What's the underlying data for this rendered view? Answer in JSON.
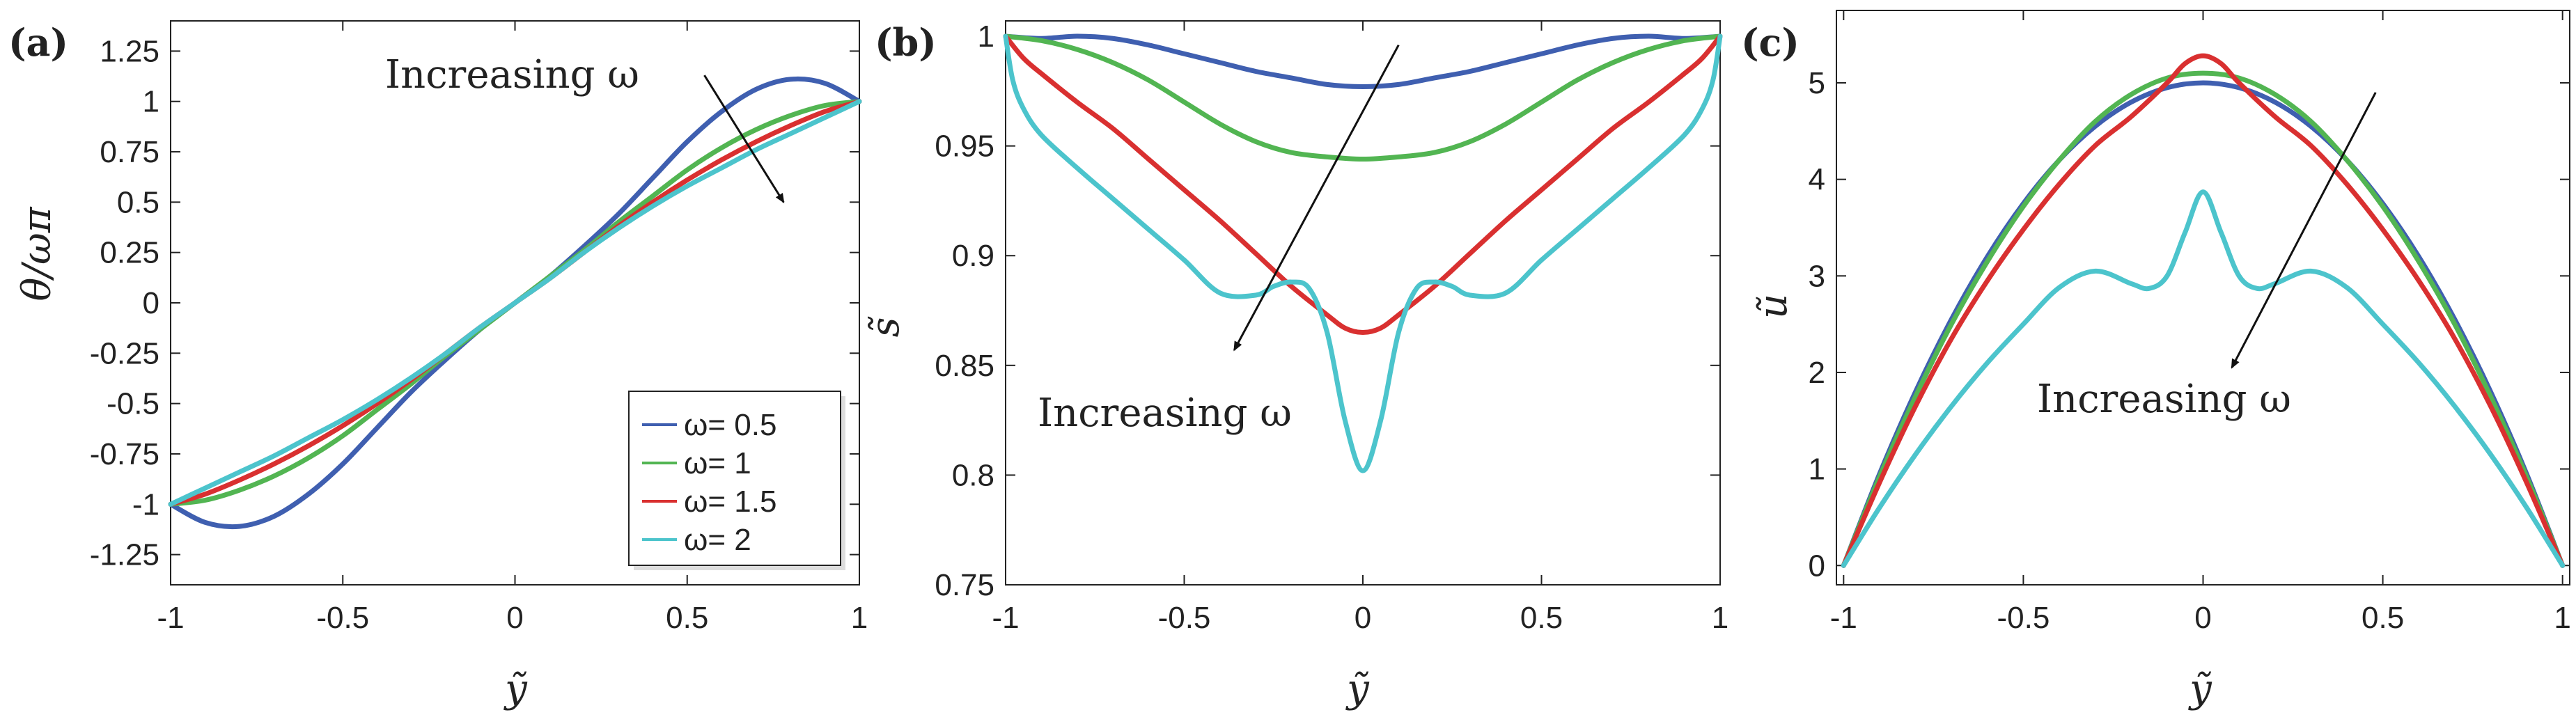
{
  "figure": {
    "panels": [
      "(a)",
      "(b)",
      "(c)"
    ]
  },
  "legend": {
    "entries": [
      "ω= 0.5",
      "ω= 1",
      "ω= 1.5",
      "ω= 2"
    ],
    "colors": [
      "#3f5fb0",
      "#52b552",
      "#d93030",
      "#4cc4cc"
    ]
  },
  "chart_data": [
    {
      "panel": "(a)",
      "type": "line",
      "xlabel": "ỹ",
      "ylabel": "θ/ωπ",
      "xlim": [
        -1,
        1
      ],
      "ylim": [
        -1.4,
        1.4
      ],
      "xticks": [
        -1,
        -0.5,
        0,
        0.5,
        1
      ],
      "xtick_labels": [
        "-1",
        "-0.5",
        "0",
        "0.5",
        "1"
      ],
      "yticks": [
        -1.25,
        -1,
        -0.75,
        -0.5,
        -0.25,
        0,
        0.25,
        0.5,
        0.75,
        1,
        1.25
      ],
      "ytick_labels": [
        "-1.25",
        "-1",
        "-0.75",
        "-0.5",
        "-0.25",
        "0",
        "0.25",
        "0.5",
        "0.75",
        "1",
        "1.25"
      ],
      "annotation": "Increasing ω",
      "arrow": {
        "from": [
          0.55,
          1.13
        ],
        "to": [
          0.78,
          0.5
        ]
      },
      "series": [
        {
          "name": "ω= 0.5",
          "color": "#3f5fb0",
          "x": [
            -1,
            -0.9,
            -0.8,
            -0.7,
            -0.6,
            -0.5,
            -0.4,
            -0.3,
            -0.2,
            -0.1,
            0,
            0.1,
            0.2,
            0.3,
            0.4,
            0.5,
            0.6,
            0.7,
            0.8,
            0.9,
            1
          ],
          "y": [
            -1,
            -1.09,
            -1.11,
            -1.06,
            -0.95,
            -0.8,
            -0.62,
            -0.44,
            -0.28,
            -0.13,
            0,
            0.13,
            0.28,
            0.44,
            0.62,
            0.8,
            0.95,
            1.06,
            1.11,
            1.09,
            1
          ]
        },
        {
          "name": "ω= 1",
          "color": "#52b552",
          "x": [
            -1,
            -0.9,
            -0.8,
            -0.7,
            -0.6,
            -0.5,
            -0.4,
            -0.3,
            -0.2,
            -0.1,
            0,
            0.1,
            0.2,
            0.3,
            0.4,
            0.5,
            0.6,
            0.7,
            0.8,
            0.9,
            1
          ],
          "y": [
            -1,
            -0.98,
            -0.93,
            -0.86,
            -0.77,
            -0.66,
            -0.53,
            -0.4,
            -0.26,
            -0.13,
            0,
            0.13,
            0.26,
            0.4,
            0.53,
            0.66,
            0.77,
            0.86,
            0.93,
            0.98,
            1
          ]
        },
        {
          "name": "ω= 1.5",
          "color": "#d93030",
          "x": [
            -1,
            -0.9,
            -0.8,
            -0.7,
            -0.6,
            -0.5,
            -0.4,
            -0.3,
            -0.2,
            -0.1,
            0,
            0.1,
            0.2,
            0.3,
            0.4,
            0.5,
            0.6,
            0.7,
            0.8,
            0.9,
            1
          ],
          "y": [
            -1,
            -0.95,
            -0.88,
            -0.8,
            -0.71,
            -0.61,
            -0.5,
            -0.38,
            -0.25,
            -0.12,
            0,
            0.12,
            0.25,
            0.38,
            0.5,
            0.61,
            0.71,
            0.8,
            0.88,
            0.95,
            1
          ]
        },
        {
          "name": "ω= 2",
          "color": "#4cc4cc",
          "x": [
            -1,
            -0.9,
            -0.8,
            -0.7,
            -0.6,
            -0.5,
            -0.4,
            -0.3,
            -0.2,
            -0.1,
            0,
            0.1,
            0.2,
            0.3,
            0.4,
            0.5,
            0.6,
            0.7,
            0.8,
            0.9,
            1
          ],
          "y": [
            -1,
            -0.92,
            -0.84,
            -0.76,
            -0.67,
            -0.58,
            -0.48,
            -0.37,
            -0.25,
            -0.12,
            0,
            0.12,
            0.25,
            0.37,
            0.48,
            0.58,
            0.67,
            0.76,
            0.84,
            0.92,
            1
          ]
        }
      ]
    },
    {
      "panel": "(b)",
      "type": "line",
      "xlabel": "ỹ",
      "ylabel": "s̃",
      "xlim": [
        -1,
        1
      ],
      "ylim": [
        0.75,
        1.007
      ],
      "xticks": [
        -1,
        -0.5,
        0,
        0.5,
        1
      ],
      "xtick_labels": [
        "-1",
        "-0.5",
        "0",
        "0.5",
        "1"
      ],
      "yticks": [
        0.75,
        0.8,
        0.85,
        0.9,
        0.95,
        1
      ],
      "ytick_labels": [
        "0.75",
        "0.8",
        "0.85",
        "0.9",
        "0.95",
        "1"
      ],
      "annotation": "Increasing ω",
      "arrow": {
        "from": [
          0.1,
          0.996
        ],
        "to": [
          -0.36,
          0.857
        ]
      },
      "series": [
        {
          "name": "ω= 0.5",
          "color": "#3f5fb0",
          "x": [
            -1,
            -0.9,
            -0.8,
            -0.7,
            -0.6,
            -0.5,
            -0.4,
            -0.3,
            -0.2,
            -0.1,
            0,
            0.1,
            0.2,
            0.3,
            0.4,
            0.5,
            0.6,
            0.7,
            0.8,
            0.9,
            1
          ],
          "y": [
            1,
            0.999,
            1.0,
            0.999,
            0.996,
            0.992,
            0.988,
            0.984,
            0.981,
            0.978,
            0.977,
            0.978,
            0.981,
            0.984,
            0.988,
            0.992,
            0.996,
            0.999,
            1.0,
            0.999,
            1
          ]
        },
        {
          "name": "ω= 1",
          "color": "#52b552",
          "x": [
            -1,
            -0.9,
            -0.8,
            -0.7,
            -0.6,
            -0.5,
            -0.4,
            -0.3,
            -0.2,
            -0.1,
            0,
            0.1,
            0.2,
            0.3,
            0.4,
            0.5,
            0.6,
            0.7,
            0.8,
            0.9,
            1
          ],
          "y": [
            1,
            0.998,
            0.994,
            0.988,
            0.98,
            0.97,
            0.96,
            0.952,
            0.947,
            0.945,
            0.944,
            0.945,
            0.947,
            0.952,
            0.96,
            0.97,
            0.98,
            0.988,
            0.994,
            0.998,
            1
          ]
        },
        {
          "name": "ω= 1.5",
          "color": "#d93030",
          "x": [
            -1,
            -0.95,
            -0.9,
            -0.8,
            -0.7,
            -0.6,
            -0.5,
            -0.4,
            -0.3,
            -0.2,
            -0.1,
            -0.05,
            0,
            0.05,
            0.1,
            0.2,
            0.3,
            0.4,
            0.5,
            0.6,
            0.7,
            0.8,
            0.9,
            0.95,
            1
          ],
          "y": [
            1,
            0.99,
            0.983,
            0.97,
            0.958,
            0.944,
            0.93,
            0.916,
            0.901,
            0.886,
            0.873,
            0.867,
            0.865,
            0.867,
            0.873,
            0.886,
            0.901,
            0.916,
            0.93,
            0.944,
            0.958,
            0.97,
            0.983,
            0.99,
            1
          ]
        },
        {
          "name": "ω= 2",
          "color": "#4cc4cc",
          "x": [
            -1,
            -0.98,
            -0.95,
            -0.9,
            -0.8,
            -0.7,
            -0.6,
            -0.5,
            -0.4,
            -0.3,
            -0.25,
            -0.2,
            -0.15,
            -0.1,
            -0.05,
            0,
            0.05,
            0.1,
            0.15,
            0.2,
            0.25,
            0.3,
            0.4,
            0.5,
            0.6,
            0.7,
            0.8,
            0.9,
            0.95,
            0.98,
            1
          ],
          "y": [
            1,
            0.98,
            0.967,
            0.955,
            0.94,
            0.926,
            0.912,
            0.898,
            0.883,
            0.882,
            0.886,
            0.888,
            0.885,
            0.865,
            0.825,
            0.802,
            0.825,
            0.865,
            0.885,
            0.888,
            0.886,
            0.882,
            0.883,
            0.898,
            0.912,
            0.926,
            0.94,
            0.955,
            0.967,
            0.98,
            1
          ]
        }
      ]
    },
    {
      "panel": "(c)",
      "type": "line",
      "xlabel": "ỹ",
      "ylabel": "ũ",
      "xlim": [
        -1.02,
        1.02
      ],
      "ylim": [
        -0.2,
        5.75
      ],
      "xticks": [
        -1,
        -0.5,
        0,
        0.5,
        1
      ],
      "xtick_labels": [
        "-1",
        "-0.5",
        "0",
        "0.5",
        "1"
      ],
      "yticks": [
        0,
        1,
        2,
        3,
        4,
        5
      ],
      "ytick_labels": [
        "0",
        "1",
        "2",
        "3",
        "4",
        "5"
      ],
      "annotation": "Increasing ω",
      "arrow": {
        "from": [
          0.48,
          4.9
        ],
        "to": [
          0.08,
          2.05
        ]
      },
      "series": [
        {
          "name": "ω= 0.5",
          "color": "#3f5fb0",
          "x": [
            -1,
            -0.9,
            -0.8,
            -0.7,
            -0.6,
            -0.5,
            -0.4,
            -0.3,
            -0.2,
            -0.1,
            0,
            0.1,
            0.2,
            0.3,
            0.4,
            0.5,
            0.6,
            0.7,
            0.8,
            0.9,
            1
          ],
          "y": [
            0,
            0.95,
            1.8,
            2.55,
            3.2,
            3.75,
            4.2,
            4.55,
            4.8,
            4.95,
            5.0,
            4.95,
            4.8,
            4.55,
            4.2,
            3.75,
            3.2,
            2.55,
            1.8,
            0.95,
            0
          ]
        },
        {
          "name": "ω= 1",
          "color": "#52b552",
          "x": [
            -1,
            -0.9,
            -0.8,
            -0.7,
            -0.6,
            -0.5,
            -0.4,
            -0.3,
            -0.2,
            -0.1,
            0,
            0.1,
            0.2,
            0.3,
            0.4,
            0.5,
            0.6,
            0.7,
            0.8,
            0.9,
            1
          ],
          "y": [
            0,
            0.92,
            1.75,
            2.5,
            3.15,
            3.72,
            4.2,
            4.6,
            4.88,
            5.05,
            5.1,
            5.05,
            4.88,
            4.6,
            4.2,
            3.72,
            3.15,
            2.5,
            1.75,
            0.92,
            0
          ]
        },
        {
          "name": "ω= 1.5",
          "color": "#d93030",
          "x": [
            -1,
            -0.9,
            -0.8,
            -0.7,
            -0.6,
            -0.5,
            -0.4,
            -0.3,
            -0.2,
            -0.1,
            -0.05,
            0,
            0.05,
            0.1,
            0.2,
            0.3,
            0.4,
            0.5,
            0.6,
            0.7,
            0.8,
            0.9,
            1
          ],
          "y": [
            0,
            0.86,
            1.65,
            2.35,
            2.95,
            3.48,
            3.95,
            4.35,
            4.65,
            5.0,
            5.2,
            5.28,
            5.2,
            5.0,
            4.65,
            4.35,
            3.95,
            3.48,
            2.95,
            2.35,
            1.65,
            0.86,
            0
          ]
        },
        {
          "name": "ω= 2",
          "color": "#4cc4cc",
          "x": [
            -1,
            -0.9,
            -0.8,
            -0.7,
            -0.6,
            -0.5,
            -0.4,
            -0.3,
            -0.2,
            -0.15,
            -0.1,
            -0.05,
            0,
            0.05,
            0.1,
            0.15,
            0.2,
            0.3,
            0.4,
            0.5,
            0.6,
            0.7,
            0.8,
            0.9,
            1
          ],
          "y": [
            0,
            0.6,
            1.15,
            1.65,
            2.1,
            2.5,
            2.88,
            3.05,
            2.92,
            2.87,
            3.0,
            3.45,
            3.87,
            3.45,
            3.0,
            2.87,
            2.92,
            3.05,
            2.88,
            2.5,
            2.1,
            1.65,
            1.15,
            0.6,
            0
          ]
        }
      ]
    }
  ]
}
